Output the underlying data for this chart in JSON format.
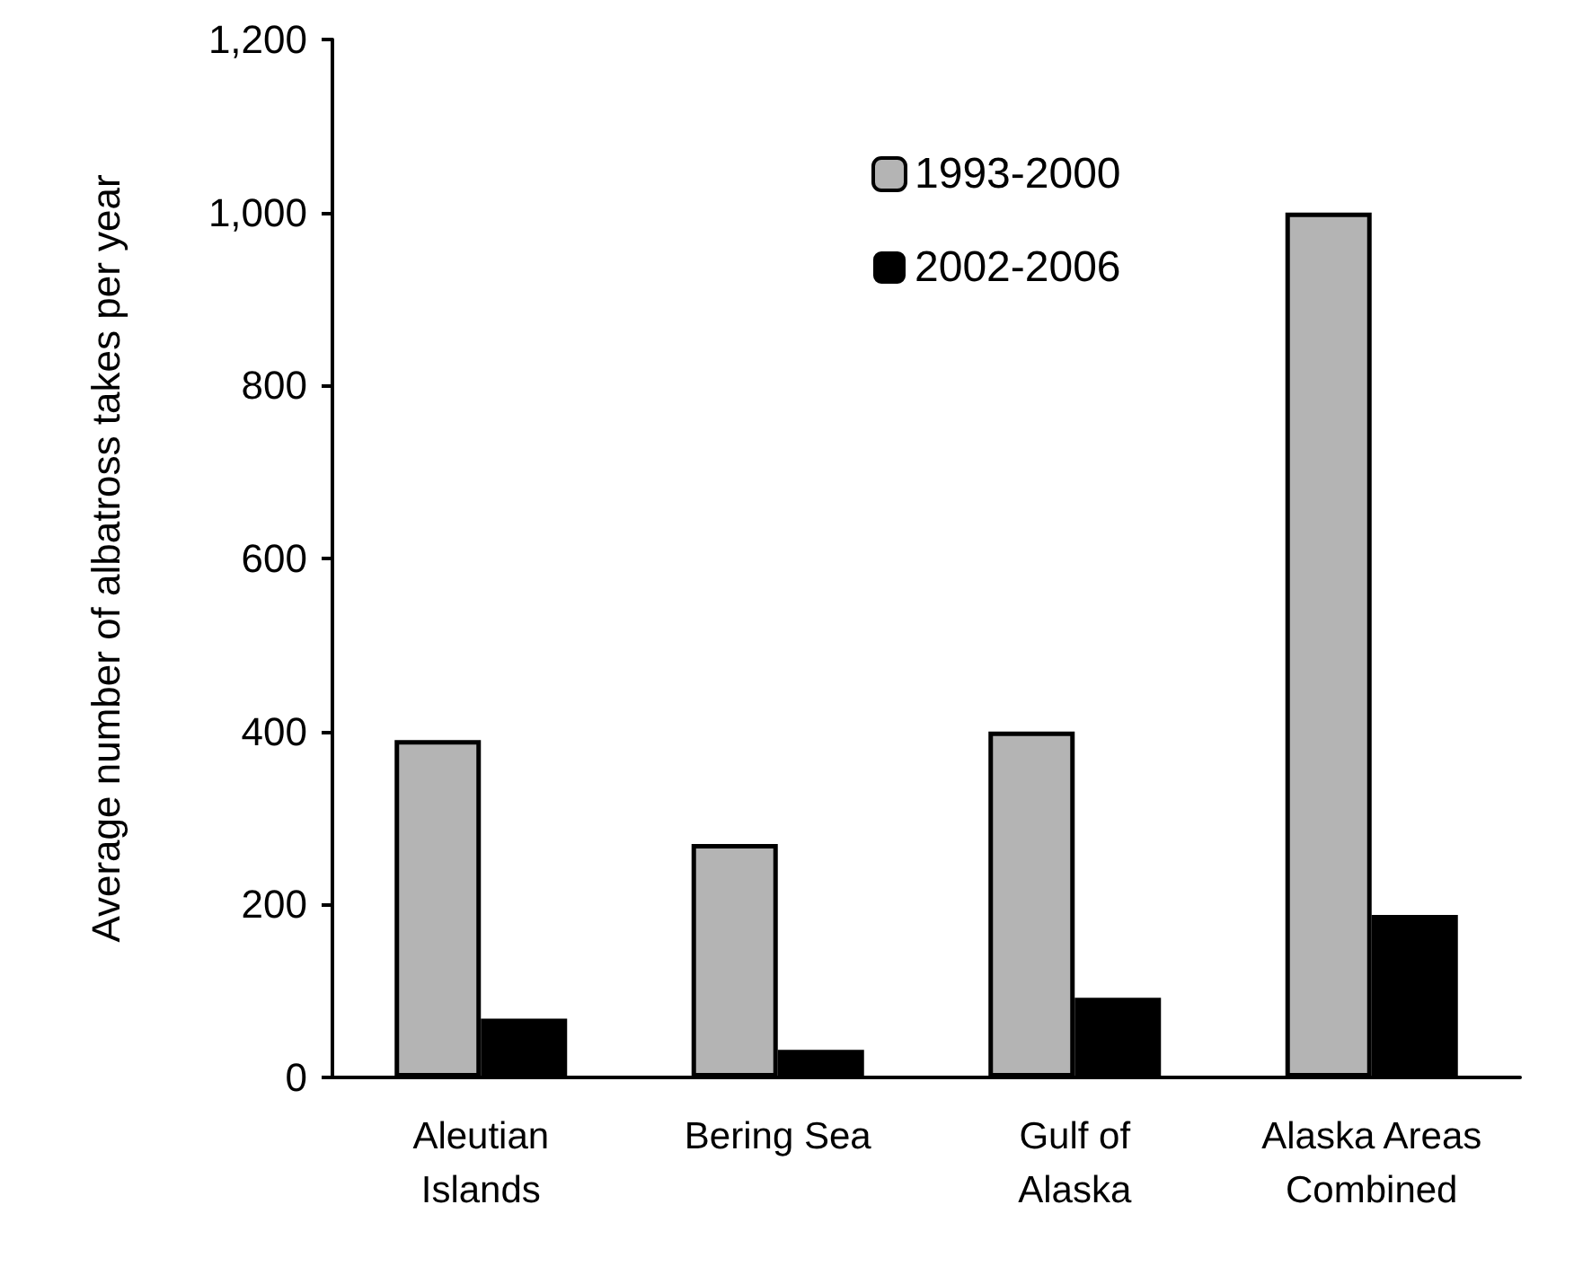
{
  "chart_data": {
    "type": "bar",
    "ylabel": "Average number of albatross takes per year",
    "categories": [
      "Aleutian\nIslands",
      "Bering Sea",
      "Gulf of\nAlaska",
      "Alaska Areas\nCombined"
    ],
    "series": [
      {
        "name": "1993-2000",
        "color": "#b4b4b4",
        "values": [
          390,
          270,
          400,
          1000
        ]
      },
      {
        "name": "2002-2006",
        "color": "#000000",
        "values": [
          68,
          32,
          92,
          188
        ]
      }
    ],
    "ylim": [
      0,
      1200
    ],
    "yticks": [
      {
        "value": 0,
        "label": "0"
      },
      {
        "value": 200,
        "label": "200"
      },
      {
        "value": 400,
        "label": "400"
      },
      {
        "value": 600,
        "label": "600"
      },
      {
        "value": 800,
        "label": "800"
      },
      {
        "value": 1000,
        "label": "1,000"
      },
      {
        "value": 1200,
        "label": "1,200"
      }
    ],
    "grid": false,
    "legend": "top"
  }
}
